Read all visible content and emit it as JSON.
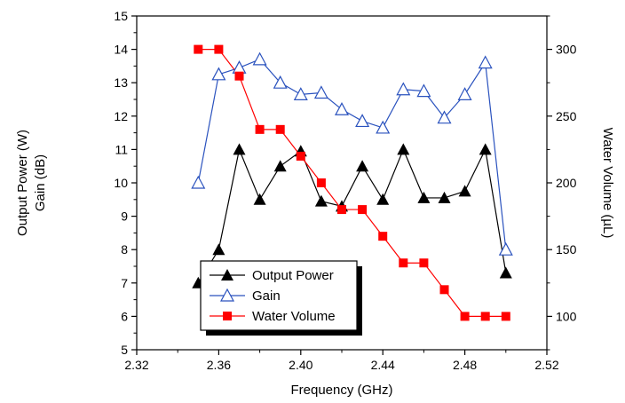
{
  "chart_data": {
    "type": "line",
    "xlabel": "Frequency (GHz)",
    "ylabel_left_line1": "Output Power (W)",
    "ylabel_left_line2": "Gain (dB)",
    "ylabel_right": "Water Volume (µL)",
    "xlim": [
      2.32,
      2.52
    ],
    "ylim_left": [
      5,
      15
    ],
    "ylim_right": [
      75,
      325
    ],
    "x_ticks": [
      "2.32",
      "2.36",
      "2.40",
      "2.44",
      "2.48",
      "2.52"
    ],
    "y_left_ticks": [
      "5",
      "6",
      "7",
      "8",
      "9",
      "10",
      "11",
      "12",
      "13",
      "14",
      "15"
    ],
    "y_right_ticks": [
      "100",
      "150",
      "200",
      "250",
      "300"
    ],
    "legend_position": "bottom-left",
    "series": [
      {
        "name": "Output Power",
        "axis": "left",
        "marker": "filled-triangle",
        "color": "#000000",
        "x": [
          2.35,
          2.36,
          2.37,
          2.38,
          2.39,
          2.4,
          2.41,
          2.42,
          2.43,
          2.44,
          2.45,
          2.46,
          2.47,
          2.48,
          2.49,
          2.5
        ],
        "values": [
          7.0,
          8.0,
          11.0,
          9.5,
          10.5,
          10.95,
          9.45,
          9.3,
          10.5,
          9.5,
          11.0,
          9.55,
          9.55,
          9.75,
          11.0,
          7.3
        ]
      },
      {
        "name": "Gain",
        "axis": "left",
        "marker": "open-triangle",
        "color": "#2a52be",
        "x": [
          2.35,
          2.36,
          2.37,
          2.38,
          2.39,
          2.4,
          2.41,
          2.42,
          2.43,
          2.44,
          2.45,
          2.46,
          2.47,
          2.48,
          2.49,
          2.5
        ],
        "values": [
          10.0,
          13.25,
          13.45,
          13.7,
          13.0,
          12.65,
          12.7,
          12.2,
          11.85,
          11.65,
          12.8,
          12.75,
          11.95,
          12.65,
          13.6,
          8.0
        ]
      },
      {
        "name": "Water Volume",
        "axis": "right",
        "marker": "filled-square",
        "color": "#ff0000",
        "x": [
          2.35,
          2.36,
          2.37,
          2.38,
          2.39,
          2.4,
          2.41,
          2.42,
          2.43,
          2.44,
          2.45,
          2.46,
          2.47,
          2.48,
          2.49,
          2.5
        ],
        "values": [
          300,
          300,
          280,
          240,
          240,
          220,
          200,
          180,
          180,
          160,
          140,
          140,
          120,
          100,
          100,
          100
        ]
      }
    ]
  }
}
